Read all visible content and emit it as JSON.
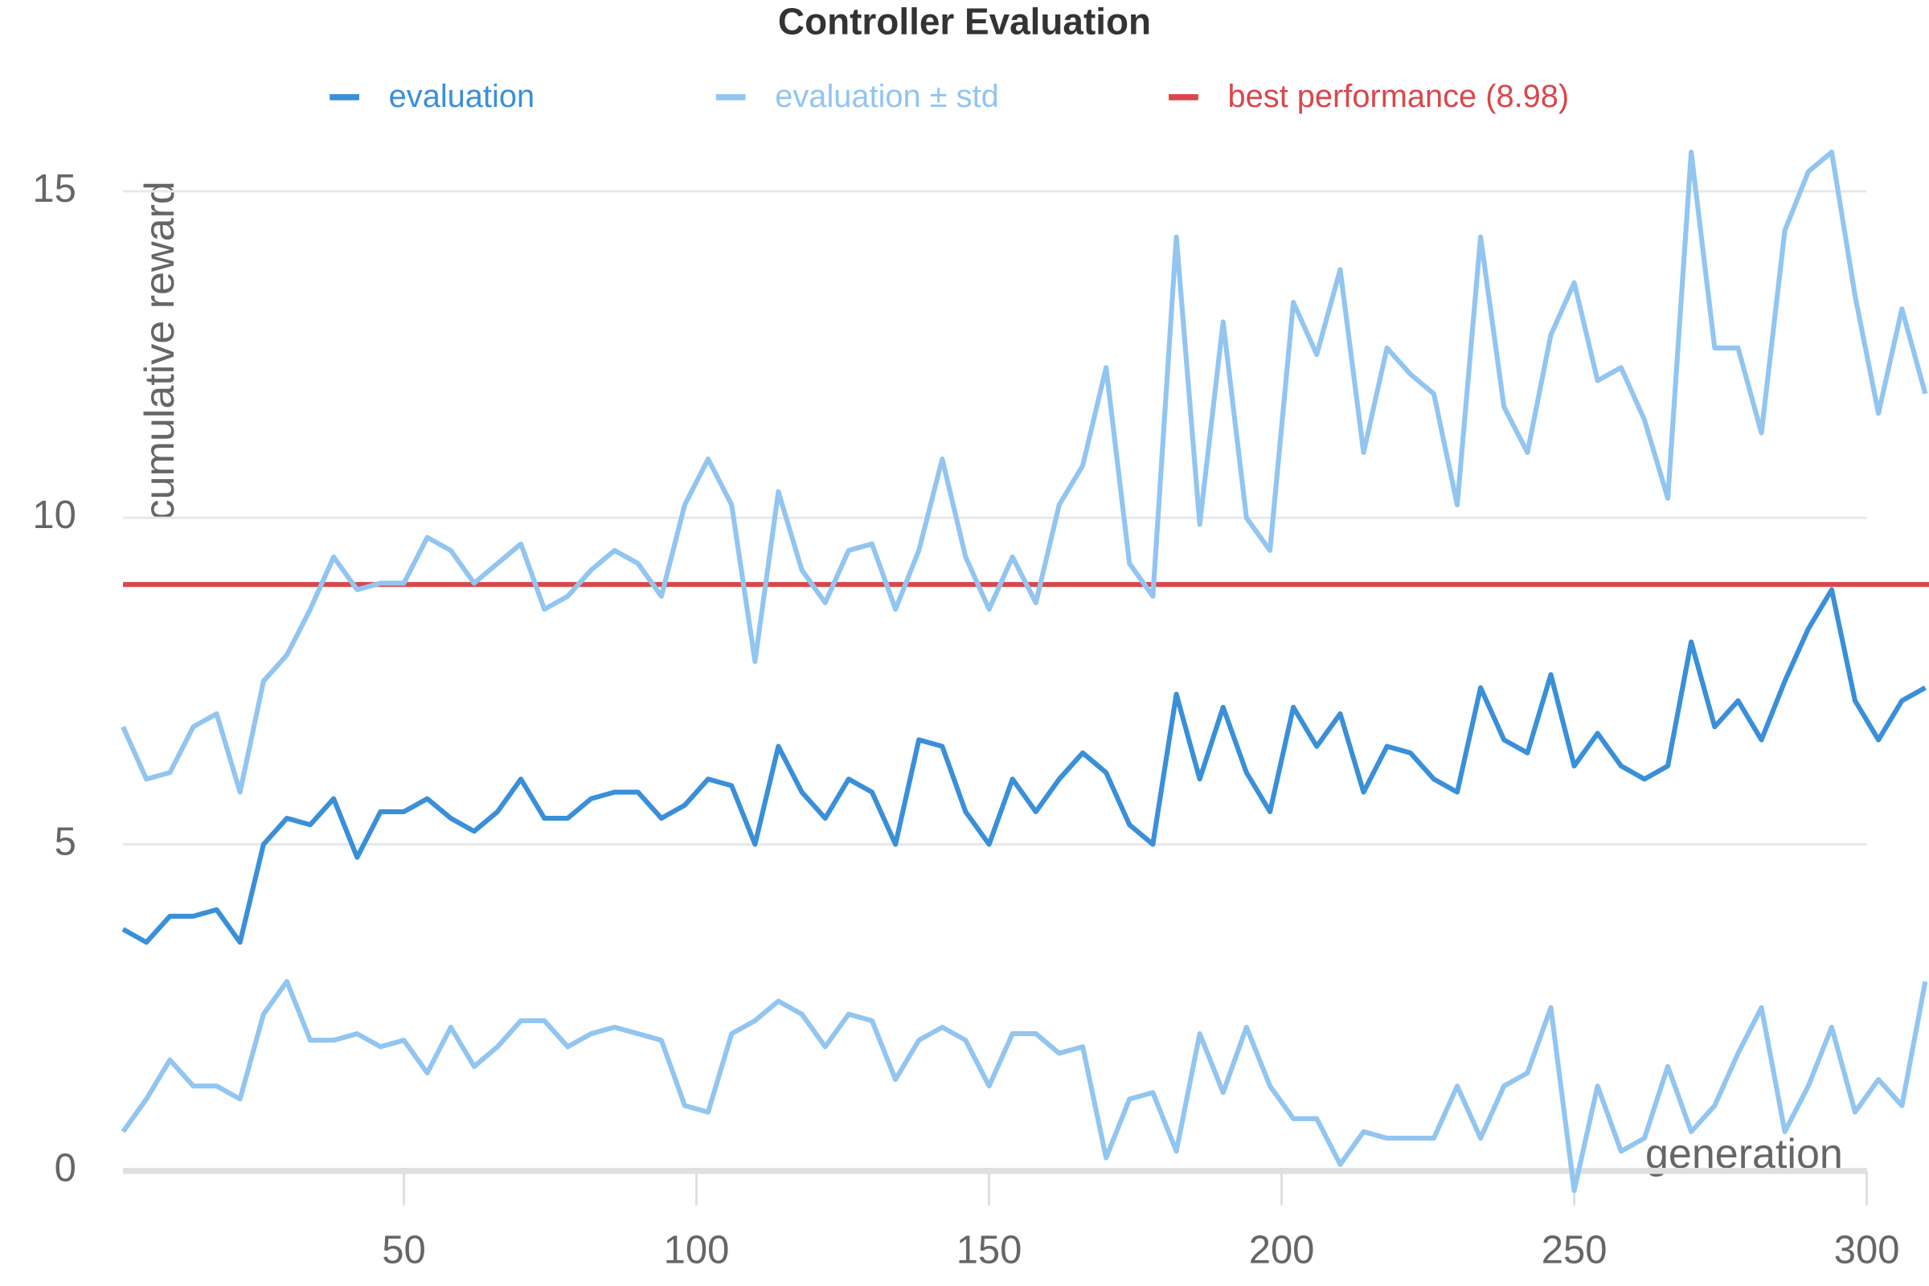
{
  "chart_data": {
    "type": "line",
    "title": "Controller Evaluation",
    "xlabel": "generation",
    "ylabel": "cumulative reward",
    "x": [
      2,
      6,
      10,
      14,
      18,
      22,
      26,
      30,
      34,
      38,
      42,
      46,
      50,
      54,
      58,
      62,
      66,
      70,
      74,
      78,
      82,
      86,
      90,
      94,
      98,
      102,
      106,
      110,
      114,
      118,
      122,
      126,
      130,
      134,
      138,
      142,
      146,
      150,
      154,
      158,
      162,
      166,
      170,
      174,
      178,
      182,
      186,
      190,
      194,
      198,
      202,
      206,
      210,
      214,
      218,
      222,
      226,
      230,
      234,
      238,
      242,
      246,
      250,
      254,
      258,
      262,
      266,
      270,
      274,
      278,
      282,
      286,
      290,
      294,
      298,
      302,
      306,
      310
    ],
    "series": [
      {
        "name": "evaluation",
        "color": "#3a8fd9",
        "values": [
          3.7,
          3.5,
          3.9,
          3.9,
          4.0,
          3.5,
          5.0,
          5.4,
          5.3,
          5.7,
          4.8,
          5.5,
          5.5,
          5.7,
          5.4,
          5.2,
          5.5,
          6.0,
          5.4,
          5.4,
          5.7,
          5.8,
          5.8,
          5.4,
          5.6,
          6.0,
          5.9,
          5.0,
          6.5,
          5.8,
          5.4,
          6.0,
          5.8,
          5.0,
          6.6,
          6.5,
          5.5,
          5.0,
          6.0,
          5.5,
          6.0,
          6.4,
          6.1,
          5.3,
          5.0,
          7.3,
          6.0,
          7.1,
          6.1,
          5.5,
          7.1,
          6.5,
          7.0,
          5.8,
          6.5,
          6.4,
          6.0,
          5.8,
          7.4,
          6.6,
          6.4,
          7.6,
          6.2,
          6.7,
          6.2,
          6.0,
          6.2,
          8.1,
          6.8,
          7.2,
          6.6,
          7.5,
          8.3,
          8.9,
          7.2,
          6.6,
          7.2,
          7.4
        ]
      },
      {
        "name": "evaluation ± std",
        "color": "#92c5f0",
        "values": [
          6.8,
          6.0,
          6.1,
          6.8,
          7.0,
          5.8,
          7.5,
          7.9,
          8.6,
          9.4,
          8.9,
          9.0,
          9.0,
          9.7,
          9.5,
          9.0,
          9.3,
          9.6,
          8.6,
          8.8,
          9.2,
          9.5,
          9.3,
          8.8,
          10.2,
          10.9,
          10.2,
          7.8,
          10.4,
          9.2,
          8.7,
          9.5,
          9.6,
          8.6,
          9.5,
          10.9,
          9.4,
          8.6,
          9.4,
          8.7,
          10.2,
          10.8,
          12.3,
          9.3,
          8.8,
          14.3,
          9.9,
          13.0,
          10.0,
          9.5,
          13.3,
          12.5,
          13.8,
          11.0,
          12.6,
          12.2,
          11.9,
          10.2,
          14.3,
          11.7,
          11.0,
          12.8,
          13.6,
          12.1,
          12.3,
          11.5,
          10.3,
          15.6,
          12.6,
          12.6,
          11.3,
          14.4,
          15.3,
          15.6,
          13.4,
          11.6,
          13.2,
          11.9
        ],
        "lower": [
          0.6,
          1.1,
          1.7,
          1.3,
          1.3,
          1.1,
          2.4,
          2.9,
          2.0,
          2.0,
          2.1,
          1.9,
          2.0,
          1.5,
          2.2,
          1.6,
          1.9,
          2.3,
          2.3,
          1.9,
          2.1,
          2.2,
          2.1,
          2.0,
          1.0,
          0.9,
          2.1,
          2.3,
          2.6,
          2.4,
          1.9,
          2.4,
          2.3,
          1.4,
          2.0,
          2.2,
          2.0,
          1.3,
          2.1,
          2.1,
          1.8,
          1.9,
          0.2,
          1.1,
          1.2,
          0.3,
          2.1,
          1.2,
          2.2,
          1.3,
          0.8,
          0.8,
          0.1,
          0.6,
          0.5,
          0.5,
          0.5,
          1.3,
          0.5,
          1.3,
          1.5,
          2.5,
          -0.3,
          1.3,
          0.3,
          0.5,
          1.6,
          0.6,
          1.0,
          1.8,
          2.5,
          0.6,
          1.3,
          2.2,
          0.9,
          1.4,
          1.0,
          2.9
        ]
      }
    ],
    "hlines": [
      {
        "name": "best performance (8.98)",
        "value": 8.98,
        "color": "#d9474b"
      }
    ],
    "xlim": [
      2,
      310
    ],
    "ylim": [
      -0.5,
      15.8
    ],
    "xticks": [
      50,
      100,
      150,
      200,
      250,
      300
    ],
    "yticks": [
      0,
      5,
      10,
      15
    ],
    "grid": true,
    "legend": "top"
  }
}
